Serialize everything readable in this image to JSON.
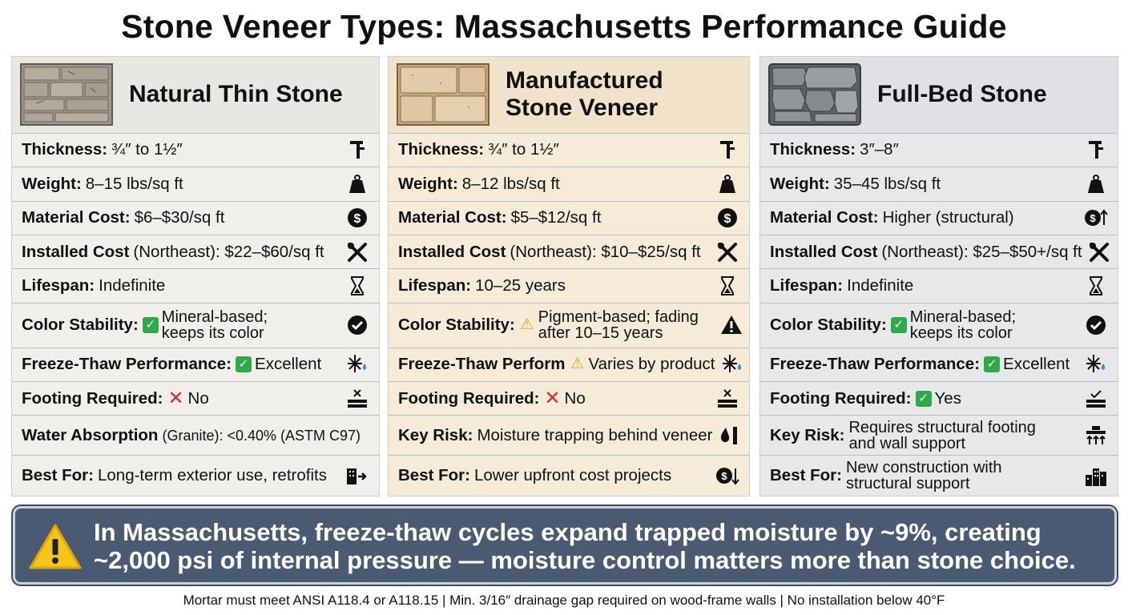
{
  "title": "Stone Veneer Types: Massachusetts Performance Guide",
  "columns": [
    {
      "name": "Natural Thin Stone",
      "rows": [
        {
          "label": "Thickness:",
          "value": "¾″ to 1½″",
          "icon": "caliper-icon"
        },
        {
          "label": "Weight:",
          "value": "8–15 lbs/sq ft",
          "icon": "weight-icon"
        },
        {
          "label": "Material Cost:",
          "value": "$6–$30/sq ft",
          "icon": "dollar-icon"
        },
        {
          "label": "Installed Cost",
          "value": "(Northeast): $22–$60/sq ft",
          "icon": "tools-icon"
        },
        {
          "label": "Lifespan:",
          "value": "Indefinite",
          "icon": "hourglass-icon"
        },
        {
          "label": "Color Stability:",
          "mark": "✓",
          "value": "Mineral-based; keeps its color",
          "icon": "check-circle-icon"
        },
        {
          "label": "Freeze-Thaw Performance:",
          "mark": "✓",
          "value": "Excellent",
          "icon": "snowflake-drop-icon"
        },
        {
          "label": "Footing Required:",
          "mark": "✕",
          "value": "No",
          "icon": "footing-x-icon"
        },
        {
          "label": "Water Absorption",
          "small": "(Granite): <0.40% (ASTM C97)",
          "icon": ""
        },
        {
          "label": "Best For:",
          "value": "Long-term exterior use, retrofits",
          "icon": "building-arrow-icon"
        }
      ]
    },
    {
      "name": "Manufactured Stone Veneer",
      "name_line1": "Manufactured",
      "name_line2": "Stone Veneer",
      "rows": [
        {
          "label": "Thickness:",
          "value": "¾″ to 1½″",
          "icon": "caliper-icon"
        },
        {
          "label": "Weight:",
          "value": "8–12 lbs/sq ft",
          "icon": "weight-icon"
        },
        {
          "label": "Material Cost:",
          "value": "$5–$12/sq ft",
          "icon": "dollar-icon"
        },
        {
          "label": "Installed Cost",
          "value": "(Northeast): $10–$25/sq ft",
          "icon": "tools-icon"
        },
        {
          "label": "Lifespan:",
          "value": "10–25 years",
          "icon": "hourglass-icon"
        },
        {
          "label": "Color Stability:",
          "mark": "⚠",
          "value": "Pigment-based; fading after 10–15 years",
          "icon": "warning-icon"
        },
        {
          "label": "Freeze-Thaw Perform",
          "mark": "⚠",
          "value": "Varies by product",
          "icon": "snowflake-drop-icon"
        },
        {
          "label": "Footing Required:",
          "mark": "✕",
          "value": "No",
          "icon": "footing-x-icon"
        },
        {
          "label": "Key Risk:",
          "value": "Moisture trapping behind veneer",
          "icon": "drop-wall-icon"
        },
        {
          "label": "Best For:",
          "value": "Lower upfront cost projects",
          "icon": "dollar-down-icon"
        }
      ]
    },
    {
      "name": "Full-Bed Stone",
      "rows": [
        {
          "label": "Thickness:",
          "value": "3″–8″",
          "icon": "caliper-icon"
        },
        {
          "label": "Weight:",
          "value": "35–45 lbs/sq ft",
          "icon": "weight-icon"
        },
        {
          "label": "Material Cost:",
          "value": "Higher (structural)",
          "icon": "dollar-up-icon"
        },
        {
          "label": "Installed Cost",
          "value": "(Northeast): $25–$50+/sq ft",
          "icon": "tools-icon"
        },
        {
          "label": "Lifespan:",
          "value": "Indefinite",
          "icon": "hourglass-icon"
        },
        {
          "label": "Color Stability:",
          "mark": "✓",
          "value": "Mineral-based; keeps its color",
          "icon": "check-circle-icon"
        },
        {
          "label": "Freeze-Thaw Performance:",
          "mark": "✓",
          "value": "Excellent",
          "icon": "snowflake-drop-icon"
        },
        {
          "label": "Footing Required:",
          "mark": "✓",
          "value": "Yes",
          "icon": "footing-check-icon"
        },
        {
          "label": "Key Risk:",
          "value": "Requires structural footing and wall support",
          "icon": "support-icon"
        },
        {
          "label": "Best For:",
          "value": "New construction with structural support",
          "icon": "buildings-icon"
        }
      ]
    }
  ],
  "banner": {
    "icon": "warning-icon",
    "text": "In Massachusetts, freeze-thaw cycles expand trapped moisture by ~9%, creating ~2,000 psi of internal pressure — moisture control matters more than stone choice."
  },
  "footnote": "Mortar must meet ANSI A118.4 or A118.15 | Min. 3/16″ drainage gap required on wood-frame walls | No installation below 40°F",
  "colors": {
    "natural_bg": "#f0efec",
    "manufactured_bg": "#f6ead8",
    "fullbed_bg": "#e7e8ea",
    "banner_bg": "#4a5a73",
    "check_green": "#2eaa4a",
    "warn_yellow": "#e8a317",
    "x_red": "#d92b2b"
  }
}
